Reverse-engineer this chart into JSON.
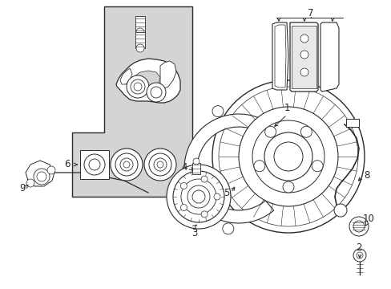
{
  "bg_color": "#ffffff",
  "line_color": "#2a2a2a",
  "gray_fill": "#d4d4d4",
  "fig_w": 4.89,
  "fig_h": 3.6,
  "dpi": 100
}
